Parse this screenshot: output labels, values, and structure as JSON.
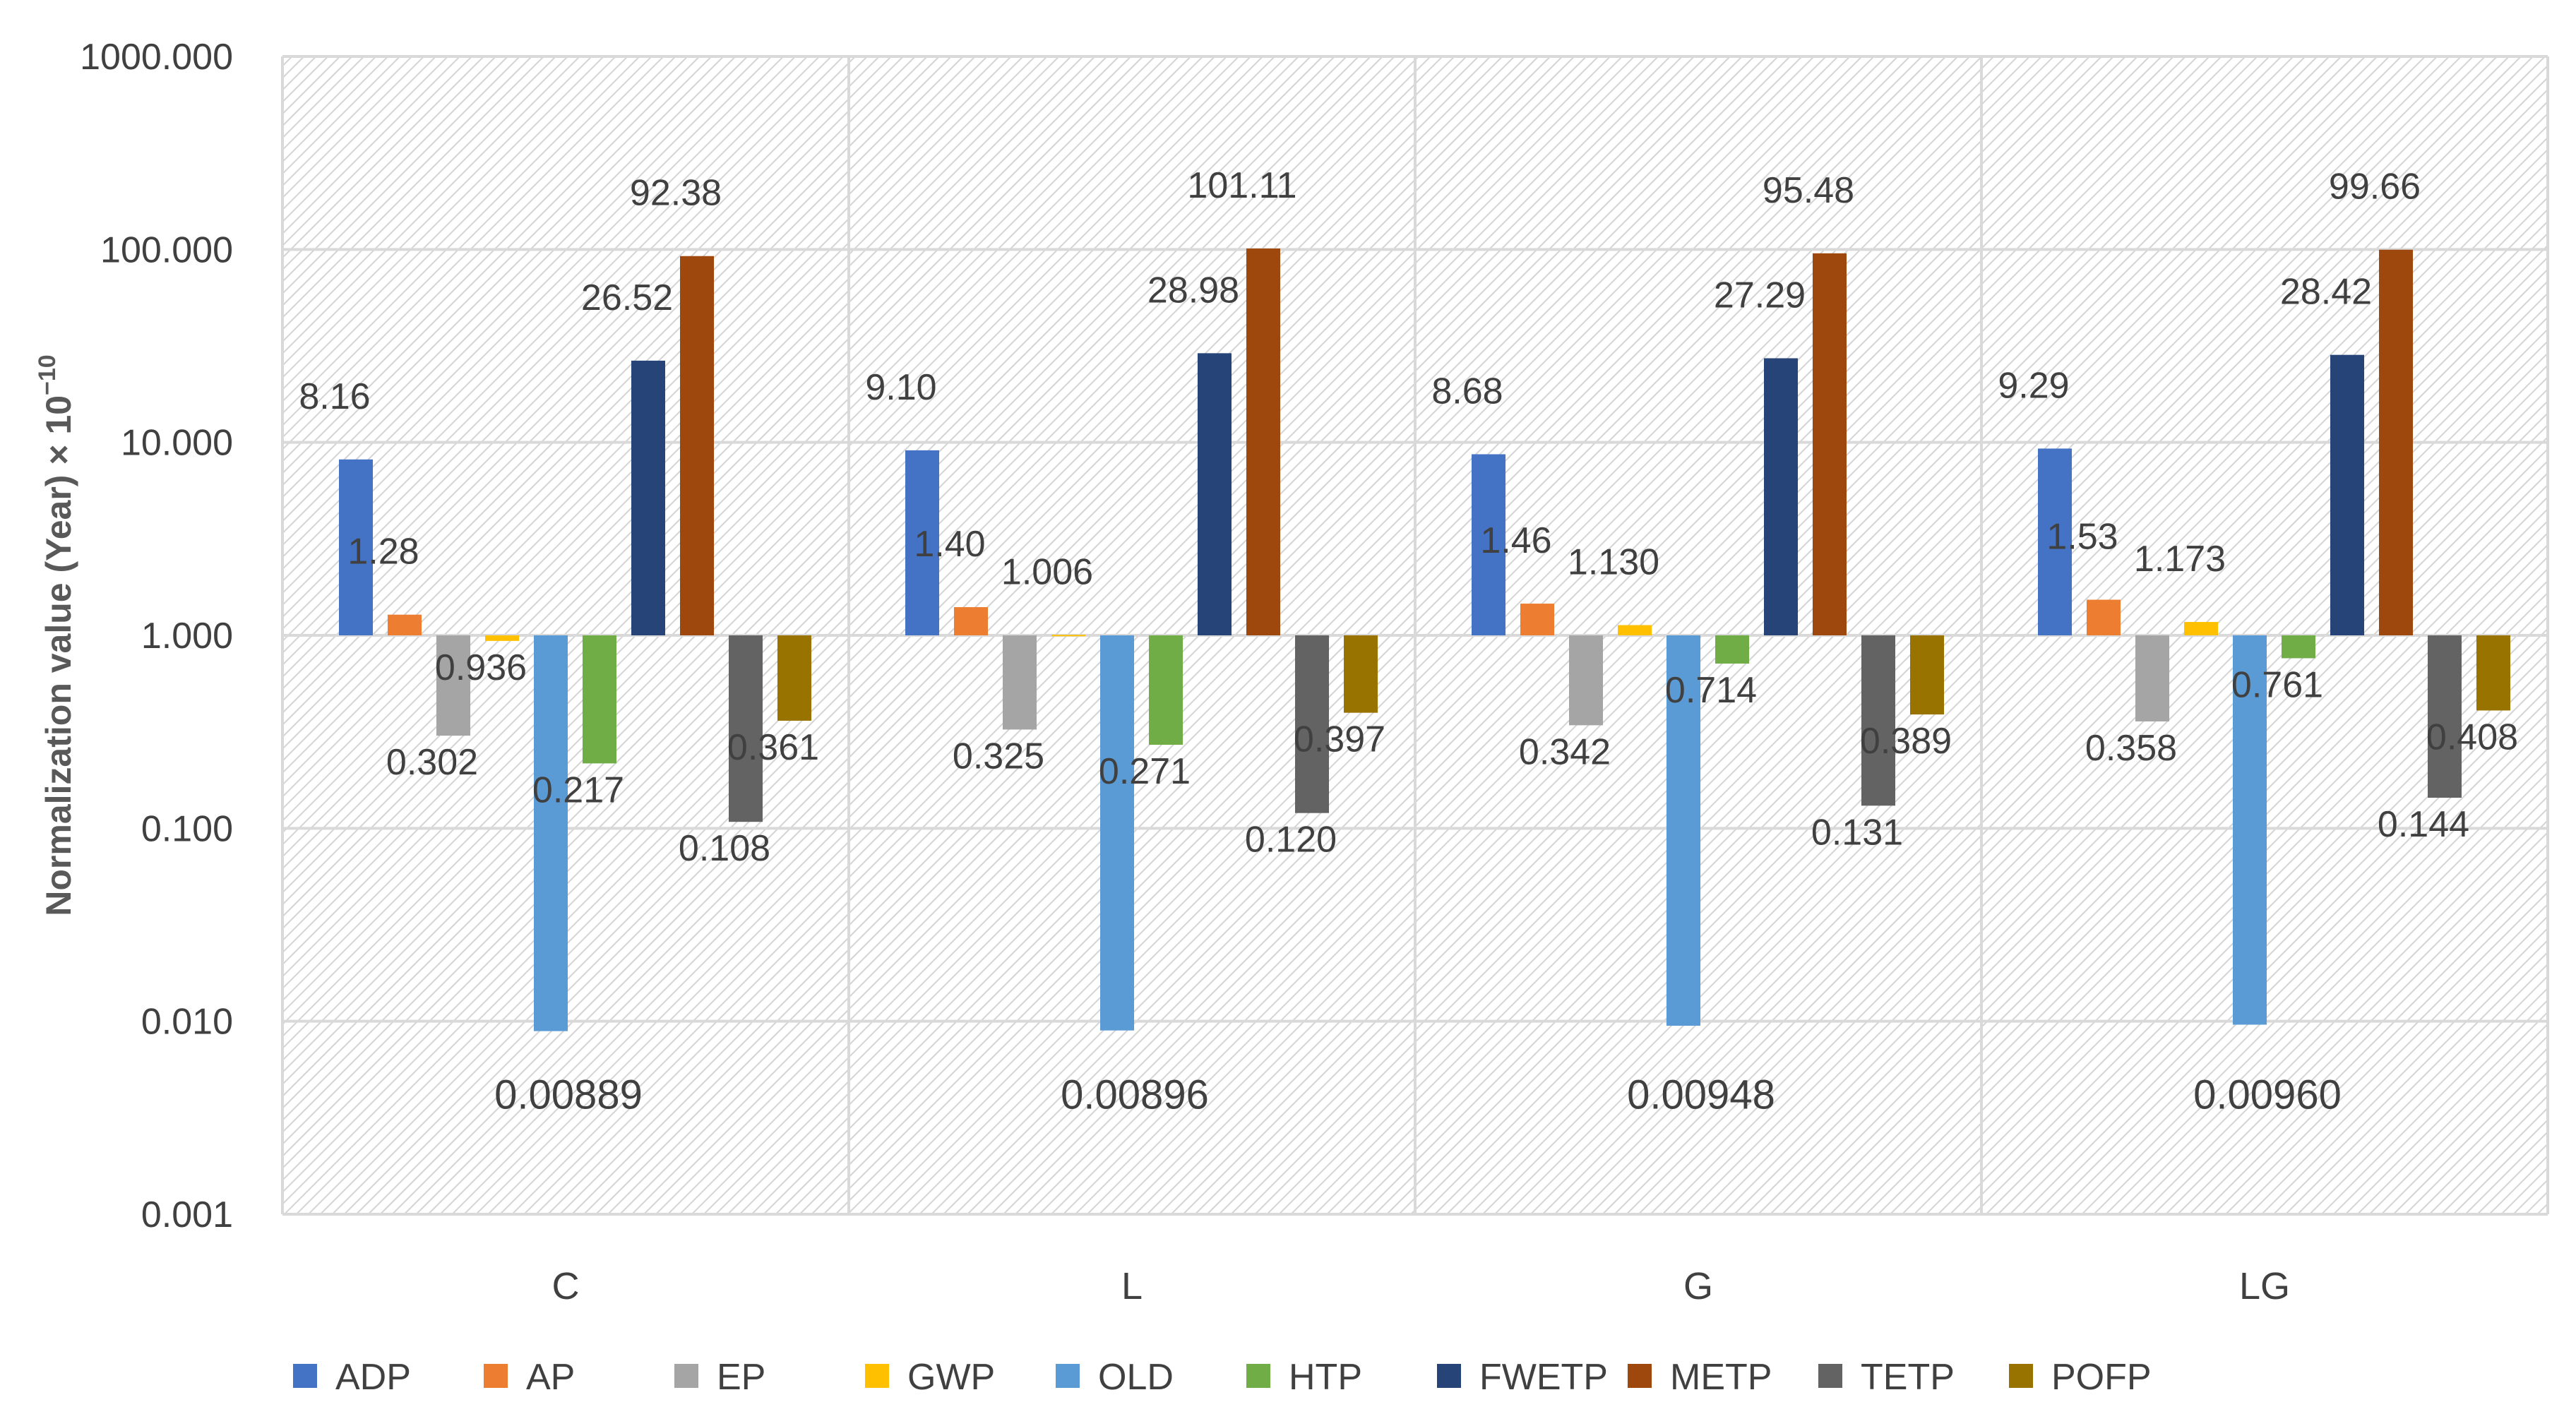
{
  "chart_data": {
    "type": "bar",
    "yscale": "log",
    "title": "",
    "xlabel": "",
    "ylabel": "Normalization value (Year) × 10",
    "ylabel_exponent": "−10",
    "ylim": [
      0.001,
      1000
    ],
    "baseline": 1,
    "yticks": [
      {
        "value": 1000,
        "label": "1000.000"
      },
      {
        "value": 100,
        "label": "100.000"
      },
      {
        "value": 10,
        "label": "10.000"
      },
      {
        "value": 1,
        "label": "1.000"
      },
      {
        "value": 0.1,
        "label": "0.100"
      },
      {
        "value": 0.01,
        "label": "0.010"
      },
      {
        "value": 0.001,
        "label": "0.001"
      }
    ],
    "categories": [
      "C",
      "L",
      "G",
      "LG"
    ],
    "legend_position": "bottom",
    "grid": true,
    "series": [
      {
        "name": "ADP",
        "color": "#4472C4",
        "values": [
          8.16,
          9.1,
          8.68,
          9.29
        ],
        "labels": [
          "8.16",
          "9.10",
          "8.68",
          "9.29"
        ]
      },
      {
        "name": "AP",
        "color": "#ED7D31",
        "values": [
          1.28,
          1.4,
          1.46,
          1.53
        ],
        "labels": [
          "1.28",
          "1.40",
          "1.46",
          "1.53"
        ]
      },
      {
        "name": "EP",
        "color": "#A5A5A5",
        "values": [
          0.302,
          0.325,
          0.342,
          0.358
        ],
        "labels": [
          "0.302",
          "0.325",
          "0.342",
          "0.358"
        ]
      },
      {
        "name": "GWP",
        "color": "#FFC000",
        "values": [
          0.936,
          1.006,
          1.13,
          1.173
        ],
        "labels": [
          "0.936",
          "1.006",
          "1.130",
          "1.173"
        ]
      },
      {
        "name": "OLD",
        "color": "#5B9BD5",
        "values": [
          0.00889,
          0.00896,
          0.00948,
          0.0096
        ],
        "labels": [
          "0.00889",
          "0.00896",
          "0.00948",
          "0.00960"
        ]
      },
      {
        "name": "HTP",
        "color": "#70AD47",
        "values": [
          0.217,
          0.271,
          0.714,
          0.761
        ],
        "labels": [
          "0.217",
          "0.271",
          "0.714",
          "0.761"
        ]
      },
      {
        "name": "FWETP",
        "color": "#264478",
        "values": [
          26.52,
          28.98,
          27.29,
          28.42
        ],
        "labels": [
          "26.52",
          "28.98",
          "27.29",
          "28.42"
        ]
      },
      {
        "name": "METP",
        "color": "#9E480E",
        "values": [
          92.38,
          101.11,
          95.48,
          99.66
        ],
        "labels": [
          "92.38",
          "101.11",
          "95.48",
          "99.66"
        ]
      },
      {
        "name": "TETP",
        "color": "#636363",
        "values": [
          0.108,
          0.12,
          0.131,
          0.144
        ],
        "labels": [
          "0.108",
          "0.120",
          "0.131",
          "0.144"
        ]
      },
      {
        "name": "POFP",
        "color": "#997300",
        "values": [
          0.361,
          0.397,
          0.389,
          0.408
        ],
        "labels": [
          "0.361",
          "0.397",
          "0.389",
          "0.408"
        ]
      }
    ]
  }
}
